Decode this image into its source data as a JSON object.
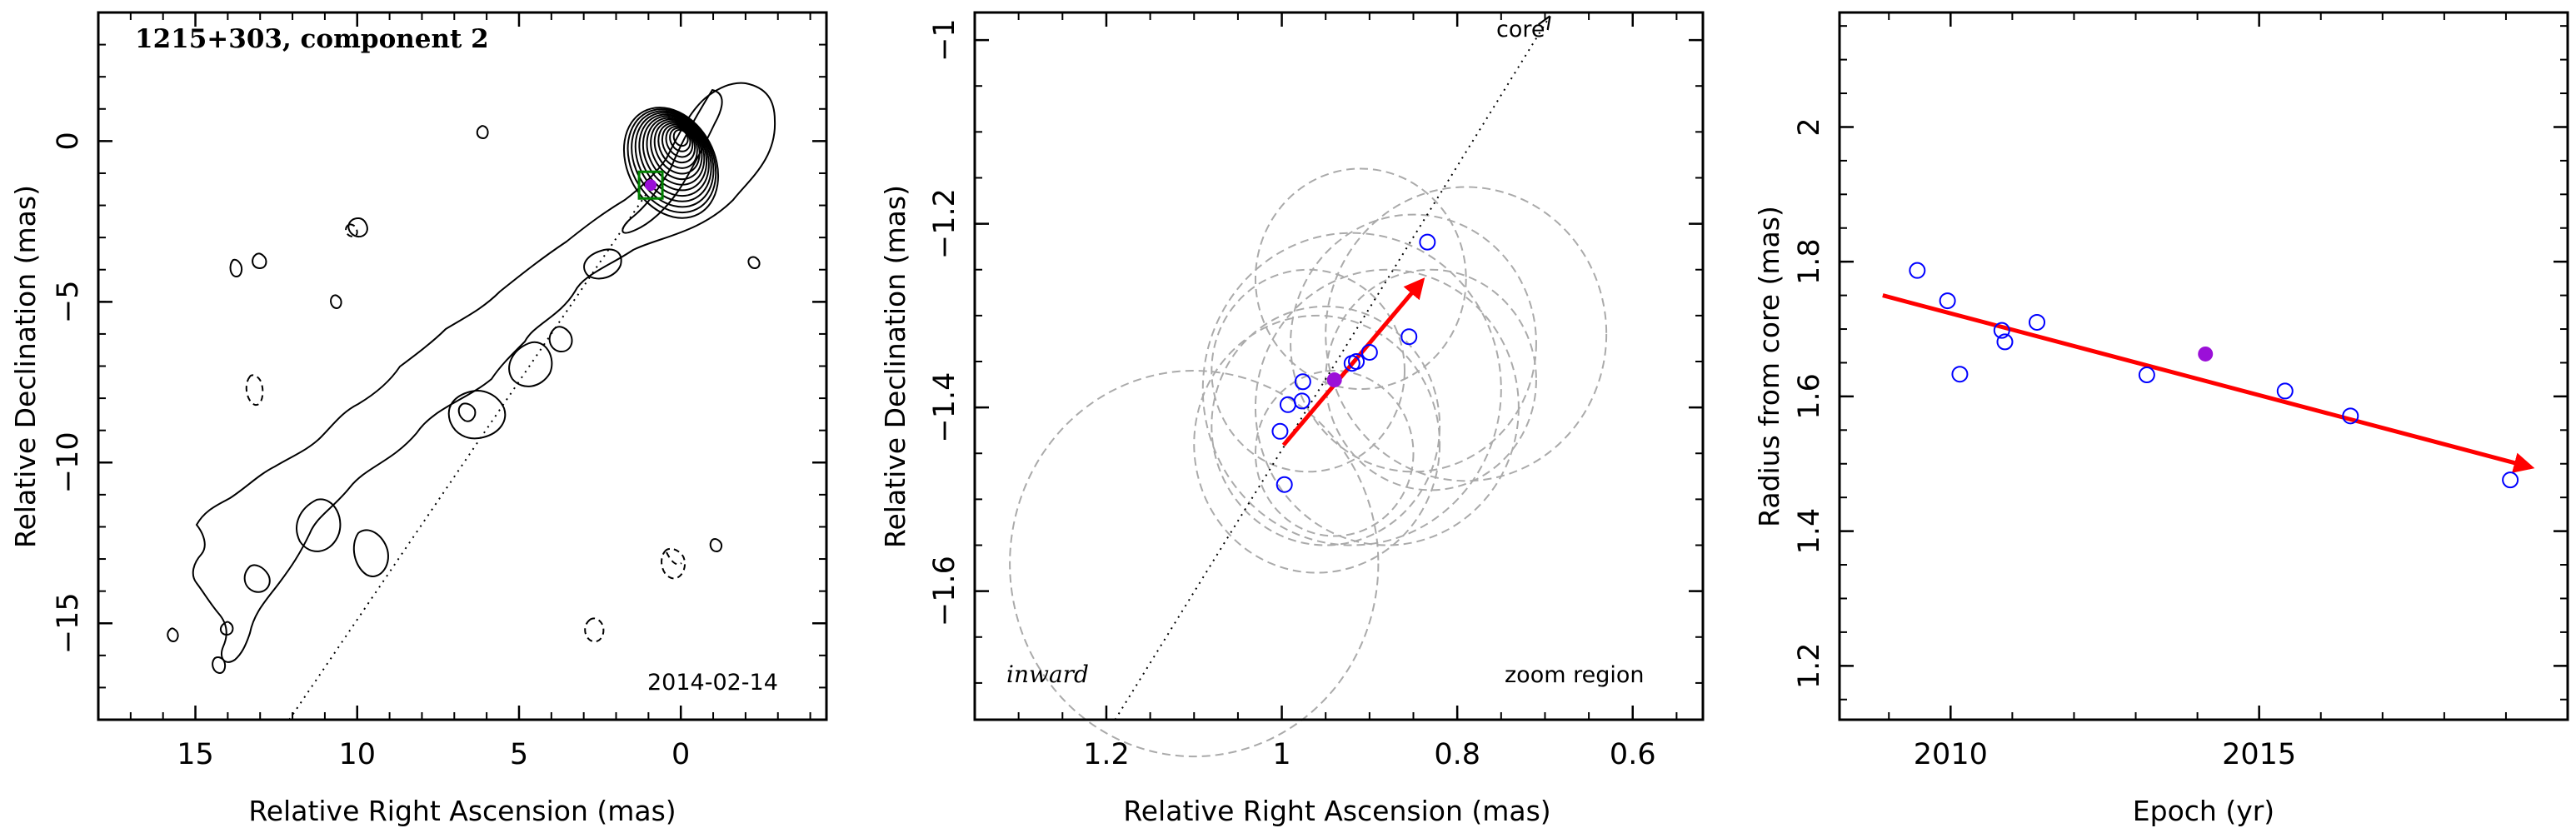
{
  "chart_data": [
    {
      "type": "contour",
      "title": "1215+303, component 2",
      "date_label": "2014-02-14",
      "xlabel": "Relative Right Ascension (mas)",
      "ylabel": "Relative Declination (mas)",
      "xlim": [
        18,
        -4.5
      ],
      "ylim": [
        -18,
        4
      ],
      "xticks": [
        "15",
        "10",
        "5",
        "0"
      ],
      "yticks": [
        "−15",
        "−10",
        "−5",
        "0"
      ],
      "component_marker": {
        "x": 0.93,
        "y": -1.37,
        "box_color": "#008000",
        "marker_color": "#9b10d8"
      }
    },
    {
      "type": "scatter",
      "xlabel": "Relative Right Ascension (mas)",
      "ylabel": "Relative Declination (mas)",
      "xlim": [
        1.35,
        0.52
      ],
      "ylim": [
        -1.74,
        -0.97
      ],
      "xticks": [
        "1.2",
        "1",
        "0.8",
        "0.6"
      ],
      "yticks": [
        "−1.6",
        "−1.4",
        "−1.2",
        "−1"
      ],
      "labels": {
        "core": "core",
        "inward": "inward",
        "zoom": "zoom region"
      },
      "points": [
        {
          "x": 0.834,
          "y": -1.22
        },
        {
          "x": 0.855,
          "y": -1.323
        },
        {
          "x": 0.9,
          "y": -1.34
        },
        {
          "x": 0.915,
          "y": -1.35
        },
        {
          "x": 0.92,
          "y": -1.352
        },
        {
          "x": 0.976,
          "y": -1.372
        },
        {
          "x": 0.977,
          "y": -1.393
        },
        {
          "x": 0.993,
          "y": -1.397
        },
        {
          "x": 1.002,
          "y": -1.426
        },
        {
          "x": 0.997,
          "y": -1.484
        }
      ],
      "highlight": {
        "x": 0.94,
        "y": -1.37,
        "color": "#9b10d8"
      },
      "arrow": {
        "x0": 0.998,
        "y0": -1.441,
        "x1": 0.84,
        "y1": -1.262,
        "color": "#ff0000"
      },
      "circles": [
        {
          "x": 0.79,
          "y": -1.32,
          "r": 0.16
        },
        {
          "x": 0.85,
          "y": -1.33,
          "r": 0.14
        },
        {
          "x": 0.91,
          "y": -1.26,
          "r": 0.12
        },
        {
          "x": 1.1,
          "y": -1.57,
          "r": 0.21
        },
        {
          "x": 0.92,
          "y": -1.38,
          "r": 0.17
        },
        {
          "x": 0.95,
          "y": -1.42,
          "r": 0.13
        },
        {
          "x": 0.88,
          "y": -1.4,
          "r": 0.15
        },
        {
          "x": 0.97,
          "y": -1.36,
          "r": 0.11
        },
        {
          "x": 0.94,
          "y": -1.45,
          "r": 0.09
        },
        {
          "x": 0.83,
          "y": -1.37,
          "r": 0.12
        },
        {
          "x": 0.96,
          "y": -1.44,
          "r": 0.14
        }
      ],
      "point_color": "#0000ff"
    },
    {
      "type": "scatter",
      "xlabel": "Epoch (yr)",
      "ylabel": "Radius from core (mas)",
      "xlim": [
        2008.2,
        2020.0
      ],
      "ylim": [
        1.12,
        2.17
      ],
      "xticks": [
        "2010",
        "2015"
      ],
      "yticks": [
        "1.2",
        "1.4",
        "1.6",
        "1.8",
        "2"
      ],
      "points": [
        {
          "x": 2009.46,
          "y": 1.787
        },
        {
          "x": 2009.95,
          "y": 1.742
        },
        {
          "x": 2010.15,
          "y": 1.633
        },
        {
          "x": 2010.83,
          "y": 1.698
        },
        {
          "x": 2010.88,
          "y": 1.681
        },
        {
          "x": 2011.4,
          "y": 1.71
        },
        {
          "x": 2013.18,
          "y": 1.632
        },
        {
          "x": 2015.42,
          "y": 1.608
        },
        {
          "x": 2016.48,
          "y": 1.571
        },
        {
          "x": 2019.07,
          "y": 1.476
        }
      ],
      "highlight": {
        "x": 2014.13,
        "y": 1.663,
        "color": "#9b10d8"
      },
      "fit_arrow": {
        "x0": 2008.9,
        "y0": 1.75,
        "x1": 2019.4,
        "y1": 1.495,
        "color": "#ff0000"
      },
      "point_color": "#0000ff"
    }
  ]
}
